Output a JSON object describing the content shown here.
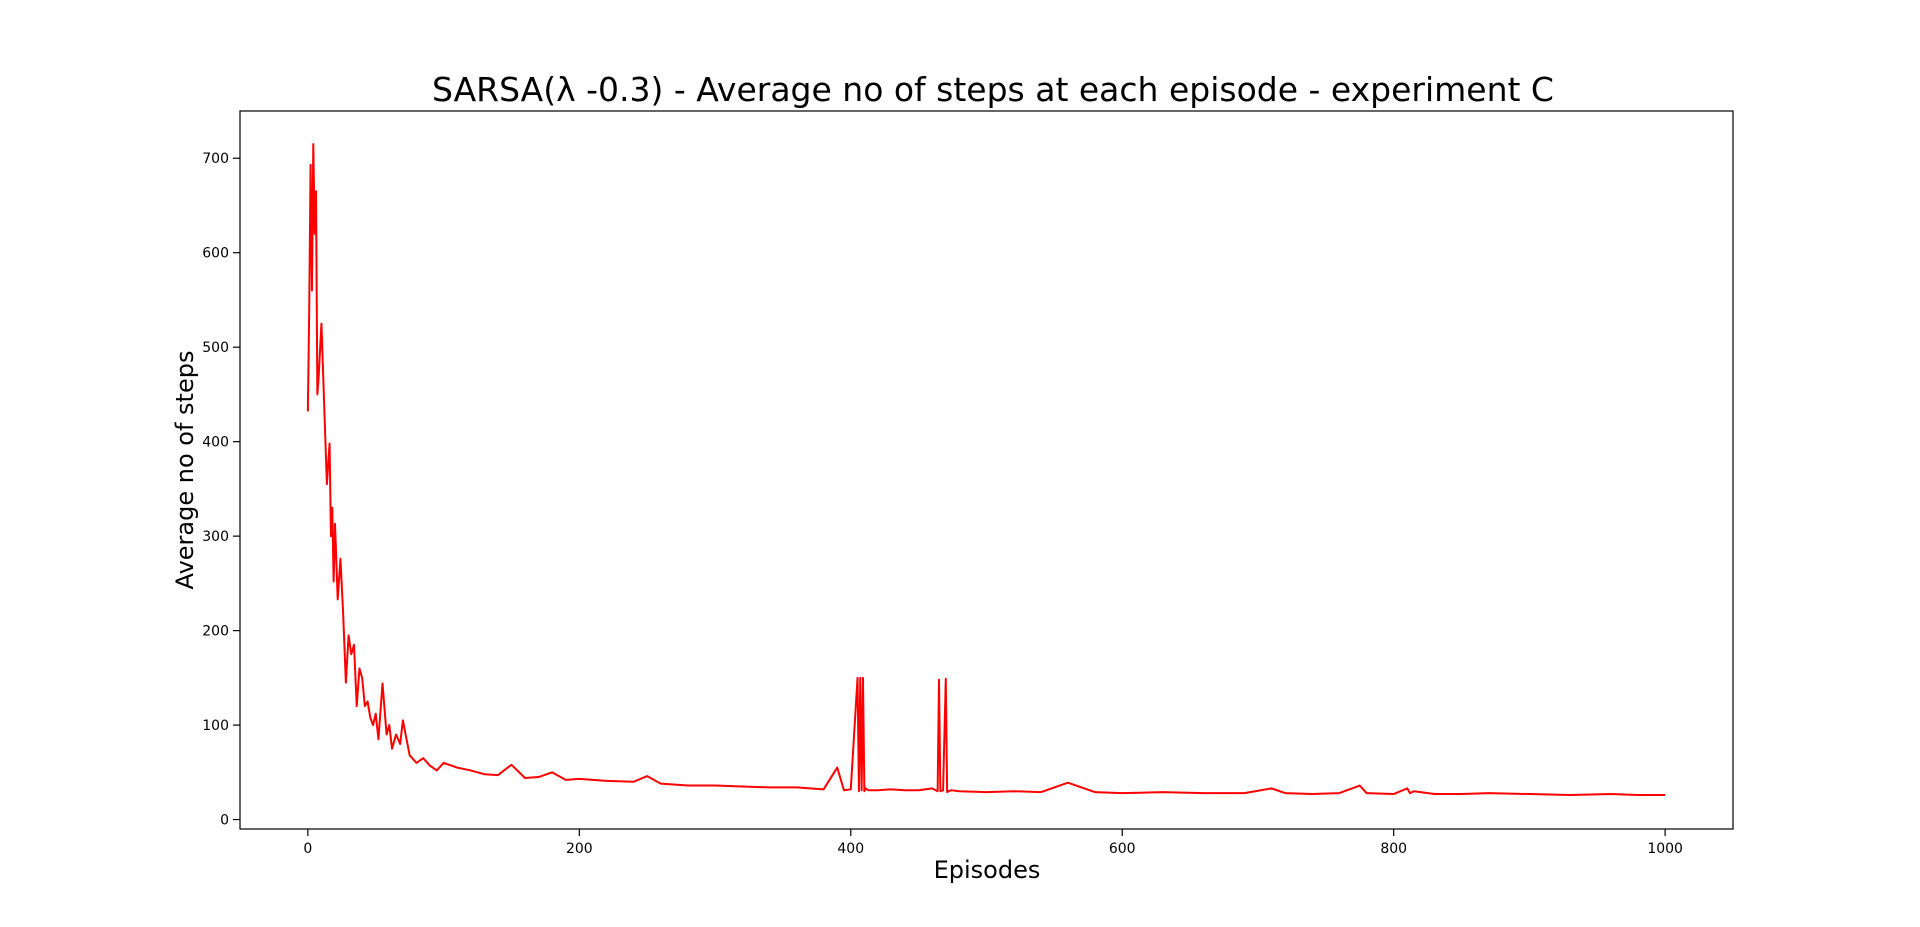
{
  "chart_data": {
    "type": "line",
    "title": "SARSA(λ -0.3) - Average no of steps at each episode - experiment C",
    "xlabel": "Episodes",
    "ylabel": "Average no of steps",
    "xlim": [
      -50,
      1050
    ],
    "ylim": [
      -10,
      750
    ],
    "xticks": [
      0,
      200,
      400,
      600,
      800,
      1000
    ],
    "yticks": [
      0,
      100,
      200,
      300,
      400,
      500,
      600,
      700
    ],
    "grid": false,
    "series": [
      {
        "name": "Average no of steps",
        "color": "#ff0000",
        "x": [
          0,
          1,
          2,
          3,
          4,
          5,
          6,
          7,
          8,
          10,
          12,
          14,
          16,
          17,
          18,
          19,
          20,
          22,
          24,
          26,
          28,
          30,
          32,
          34,
          36,
          38,
          40,
          42,
          44,
          46,
          48,
          50,
          52,
          55,
          58,
          60,
          62,
          65,
          68,
          70,
          75,
          80,
          85,
          90,
          95,
          100,
          110,
          120,
          130,
          140,
          150,
          160,
          170,
          180,
          190,
          200,
          220,
          240,
          250,
          260,
          280,
          300,
          320,
          340,
          360,
          380,
          390,
          395,
          400,
          405,
          406,
          407,
          408,
          409,
          410,
          411,
          412,
          413,
          420,
          430,
          440,
          450,
          460,
          464,
          465,
          466,
          468,
          470,
          471,
          472,
          474,
          480,
          500,
          520,
          540,
          560,
          580,
          600,
          630,
          660,
          690,
          710,
          720,
          740,
          760,
          775,
          780,
          800,
          810,
          812,
          815,
          830,
          850,
          870,
          900,
          930,
          960,
          980,
          1000
        ],
        "y": [
          432,
          540,
          693,
          560,
          715,
          620,
          665,
          450,
          470,
          525,
          440,
          355,
          398,
          300,
          330,
          252,
          313,
          233,
          276,
          218,
          145,
          195,
          175,
          185,
          120,
          160,
          150,
          120,
          125,
          108,
          100,
          112,
          85,
          144,
          90,
          100,
          75,
          90,
          80,
          105,
          68,
          60,
          65,
          57,
          52,
          60,
          55,
          52,
          48,
          47,
          58,
          44,
          45,
          50,
          42,
          43,
          41,
          40,
          46,
          38,
          36,
          36,
          35,
          34,
          34,
          32,
          55,
          31,
          32,
          150,
          30,
          150,
          31,
          150,
          30,
          33,
          32,
          31,
          31,
          32,
          31,
          31,
          33,
          30,
          148,
          30,
          31,
          149,
          29,
          30,
          31,
          30,
          29,
          30,
          29,
          39,
          29,
          28,
          29,
          28,
          28,
          33,
          28,
          27,
          28,
          36,
          28,
          27,
          33,
          28,
          30,
          27,
          27,
          28,
          27,
          26,
          27,
          26,
          26
        ]
      }
    ]
  }
}
